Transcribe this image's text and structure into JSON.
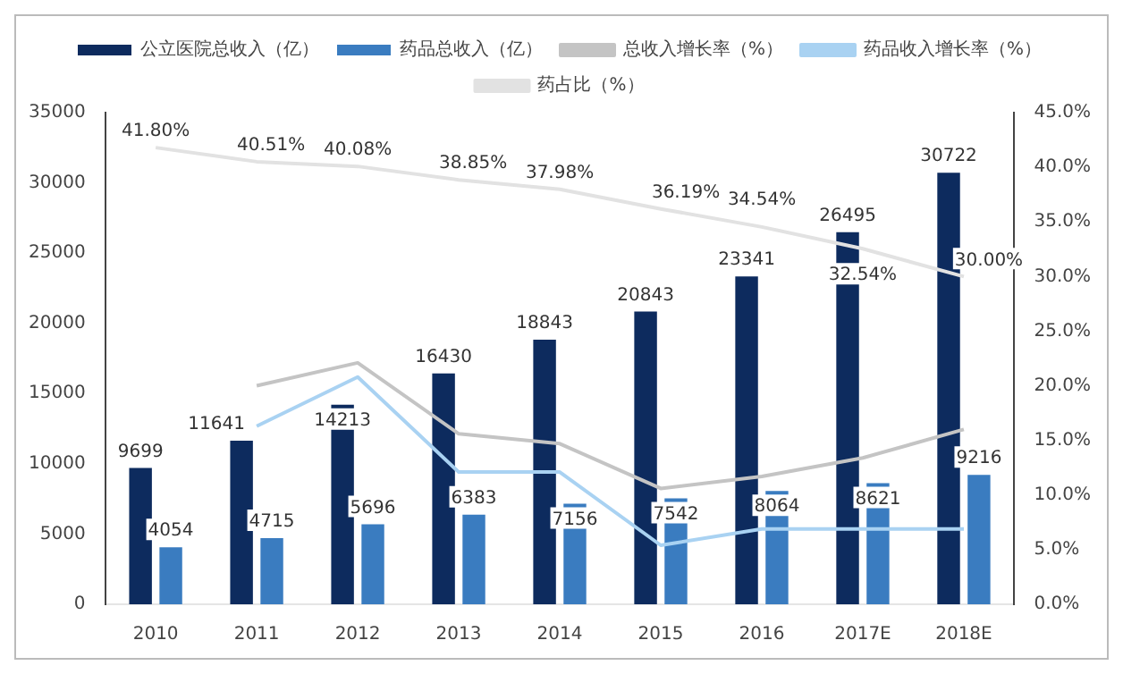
{
  "chart_data": {
    "type": "bar",
    "categories": [
      "2010",
      "2011",
      "2012",
      "2013",
      "2014",
      "2015",
      "2016",
      "2017E",
      "2018E"
    ],
    "series": [
      {
        "name": "公立医院总收入（亿）",
        "type": "bar",
        "color": "#0d2b5e",
        "values": [
          9699,
          11641,
          14213,
          16430,
          18843,
          20843,
          23341,
          26495,
          30722
        ],
        "value_labels": [
          "9699",
          "11641",
          "14213",
          "16430",
          "18843",
          "20843",
          "23341",
          "26495",
          "30722"
        ]
      },
      {
        "name": "药品总收入（亿）",
        "type": "bar",
        "color": "#3a7cc0",
        "values": [
          4054,
          4715,
          5696,
          6383,
          7156,
          7542,
          8064,
          8621,
          9216
        ],
        "value_labels": [
          "4054",
          "4715",
          "5696",
          "6383",
          "7156",
          "7542",
          "8064",
          "8621",
          "9216"
        ]
      },
      {
        "name": "总收入增长率（%）",
        "type": "line",
        "axis": "y2",
        "color": "#c4c4c4",
        "values": [
          null,
          20.0,
          22.1,
          15.6,
          14.7,
          10.6,
          11.7,
          13.4,
          16.0
        ]
      },
      {
        "name": "药品收入增长率（%）",
        "type": "line",
        "axis": "y2",
        "color": "#a9d2f2",
        "values": [
          null,
          16.3,
          20.8,
          12.1,
          12.1,
          5.4,
          6.9,
          6.9,
          6.9
        ]
      },
      {
        "name": "药占比（%）",
        "type": "line",
        "axis": "y2",
        "color": "#e2e2e2",
        "values": [
          41.8,
          40.51,
          40.08,
          38.85,
          37.98,
          36.19,
          34.54,
          32.54,
          30.0
        ],
        "value_labels": [
          "41.80%",
          "40.51%",
          "40.08%",
          "38.85%",
          "37.98%",
          "36.19%",
          "34.54%",
          "32.54%",
          "30.00%"
        ]
      }
    ],
    "ylim": [
      0,
      35000
    ],
    "yticks": [
      0,
      5000,
      10000,
      15000,
      20000,
      25000,
      30000,
      35000
    ],
    "y2lim": [
      0,
      45
    ],
    "y2ticks": [
      {
        "value": 0,
        "label": "0.0%"
      },
      {
        "value": 5,
        "label": "5.0%"
      },
      {
        "value": 10,
        "label": "10.0%"
      },
      {
        "value": 15,
        "label": "15.0%"
      },
      {
        "value": 20,
        "label": "20.0%"
      },
      {
        "value": 25,
        "label": "25.0%"
      },
      {
        "value": 30,
        "label": "30.0%"
      },
      {
        "value": 35,
        "label": "35.0%"
      },
      {
        "value": 40,
        "label": "40.0%"
      },
      {
        "value": 45,
        "label": "45.0%"
      }
    ],
    "grid": false,
    "legend": "top",
    "marker": "none",
    "line_style": "solid"
  }
}
